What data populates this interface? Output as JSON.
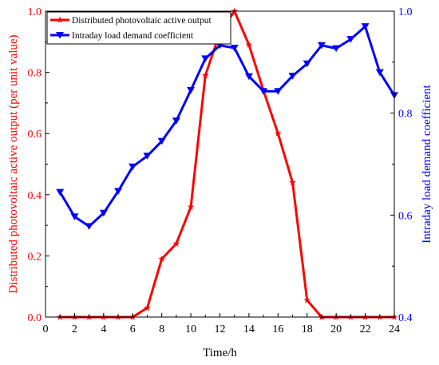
{
  "chart_data": {
    "type": "line",
    "x": [
      1,
      2,
      3,
      4,
      5,
      6,
      7,
      8,
      9,
      10,
      11,
      12,
      13,
      14,
      15,
      16,
      17,
      18,
      19,
      20,
      21,
      22,
      23,
      24
    ],
    "xlabel": "Time/h",
    "xlim": [
      0,
      24
    ],
    "xticks": [
      "0",
      "2",
      "4",
      "6",
      "8",
      "10",
      "12",
      "14",
      "16",
      "18",
      "20",
      "22",
      "24"
    ],
    "ylabel_left": "Distributed photovoltaic active output (per unit value)",
    "ylim_left": [
      0,
      1.0
    ],
    "yticks_left": [
      "0.0",
      "0.2",
      "0.4",
      "0.6",
      "0.8",
      "1.0"
    ],
    "ylabel_right": "Intraday load demand coefficient",
    "ylim_right": [
      0.4,
      1.0
    ],
    "yticks_right": [
      "0.4",
      "0.6",
      "0.8",
      "1.0"
    ],
    "legend_position": "top-left",
    "grid": false,
    "series": [
      {
        "name": "Distributed photovoltaic active output",
        "axis": "left",
        "color": "#ff0000",
        "marker": "star",
        "values": [
          0,
          0,
          0,
          0,
          0,
          0,
          0.03,
          0.19,
          0.24,
          0.36,
          0.79,
          0.93,
          1.0,
          0.89,
          0.74,
          0.6,
          0.44,
          0.055,
          0,
          0,
          0,
          0,
          0,
          0
        ]
      },
      {
        "name": "Intraday load demand coefficient",
        "axis": "right",
        "color": "#0000ff",
        "marker": "triangle-down",
        "values": [
          0.645,
          0.597,
          0.578,
          0.604,
          0.647,
          0.695,
          0.716,
          0.745,
          0.785,
          0.845,
          0.907,
          0.933,
          0.928,
          0.872,
          0.843,
          0.843,
          0.873,
          0.897,
          0.933,
          0.927,
          0.945,
          0.97,
          0.88,
          0.835
        ]
      }
    ]
  }
}
